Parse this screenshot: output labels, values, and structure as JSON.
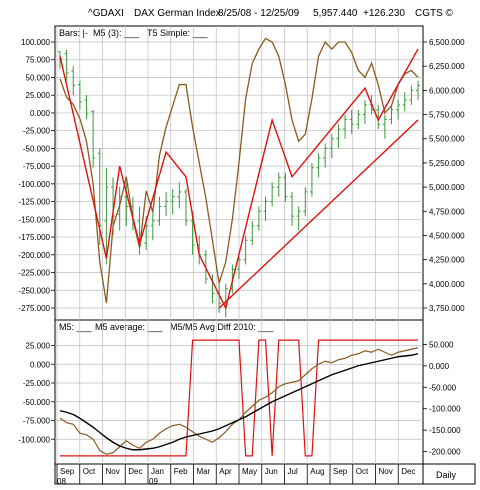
{
  "header": {
    "symbol": "^GDAXI",
    "name": "DAX German Index",
    "range": "8/25/08 - 12/25/09",
    "last": "5,957.440",
    "change": "+126.230",
    "copyright": "CGTS ©"
  },
  "colors": {
    "bars": "#3a9a3a",
    "oscillator": "#8b5a1e",
    "red": "#e01010",
    "black": "#000000",
    "grid": "#bdbdbd"
  },
  "chart_data": [
    {
      "type": "bar",
      "title": "Price panel",
      "legend": [
        "Bars: |-",
        "M5 (3): ___",
        "T5 Simple: ___"
      ],
      "right_axis": {
        "ylim": [
          3750,
          6500
        ],
        "ticks": [
          "6,500.000",
          "6,250.000",
          "6,000.000",
          "5,750.000",
          "5,500.000",
          "5,250.000",
          "5,000.000",
          "4,750.000",
          "4,500.000",
          "4,250.000",
          "4,000.000",
          "3,750.000"
        ]
      },
      "left_axis": {
        "ylim": [
          -275,
          100
        ],
        "ticks": [
          "100.000",
          "75.000",
          "50.000",
          "25.000",
          "0.000",
          "-25.000",
          "-50.000",
          "-75.000",
          "-100.000",
          "-125.000",
          "-150.000",
          "-175.000",
          "-200.000",
          "-225.000",
          "-250.000",
          "-275.000"
        ]
      },
      "ohlc_weeks": [
        [
          6400,
          6400,
          6220,
          6330
        ],
        [
          6380,
          6420,
          6100,
          6180
        ],
        [
          6200,
          6250,
          5950,
          6050
        ],
        [
          6060,
          6100,
          5800,
          5880
        ],
        [
          5900,
          5950,
          5700,
          5760
        ],
        [
          5780,
          5800,
          5200,
          5300
        ],
        [
          5350,
          5400,
          4400,
          4600
        ],
        [
          4650,
          5200,
          4200,
          5000
        ],
        [
          5000,
          5100,
          4500,
          4700
        ],
        [
          4720,
          5000,
          4550,
          4900
        ],
        [
          4900,
          5050,
          4600,
          4800
        ],
        [
          4800,
          4900,
          4550,
          4650
        ],
        [
          4650,
          4800,
          4300,
          4400
        ],
        [
          4420,
          4700,
          4350,
          4600
        ],
        [
          4600,
          4750,
          4450,
          4650
        ],
        [
          4650,
          4900,
          4600,
          4800
        ],
        [
          4800,
          4950,
          4700,
          4850
        ],
        [
          4850,
          4980,
          4720,
          4900
        ],
        [
          4900,
          5050,
          4780,
          4950
        ],
        [
          4950,
          4980,
          4600,
          4650
        ],
        [
          4650,
          4750,
          4300,
          4400
        ],
        [
          4400,
          4500,
          4200,
          4300
        ],
        [
          4300,
          4350,
          4000,
          4050
        ],
        [
          4050,
          4100,
          3800,
          3900
        ],
        [
          3900,
          4050,
          3700,
          3800
        ],
        [
          3800,
          4000,
          3650,
          3950
        ],
        [
          3950,
          4200,
          3900,
          4150
        ],
        [
          4150,
          4300,
          4050,
          4250
        ],
        [
          4250,
          4500,
          4200,
          4450
        ],
        [
          4450,
          4650,
          4400,
          4600
        ],
        [
          4600,
          4800,
          4550,
          4750
        ],
        [
          4750,
          4900,
          4650,
          4850
        ],
        [
          4850,
          5050,
          4800,
          5000
        ],
        [
          5000,
          5150,
          4900,
          5100
        ],
        [
          5100,
          5150,
          4850,
          4900
        ],
        [
          4900,
          4950,
          4600,
          4700
        ],
        [
          4700,
          4800,
          4550,
          4750
        ],
        [
          4750,
          5000,
          4700,
          4950
        ],
        [
          4950,
          5250,
          4900,
          5200
        ],
        [
          5200,
          5350,
          5100,
          5300
        ],
        [
          5300,
          5450,
          5200,
          5400
        ],
        [
          5400,
          5550,
          5300,
          5500
        ],
        [
          5500,
          5650,
          5400,
          5600
        ],
        [
          5600,
          5750,
          5500,
          5700
        ],
        [
          5700,
          5800,
          5550,
          5650
        ],
        [
          5650,
          5800,
          5600,
          5750
        ],
        [
          5750,
          5900,
          5650,
          5850
        ],
        [
          5850,
          5950,
          5750,
          5800
        ],
        [
          5800,
          5850,
          5600,
          5650
        ],
        [
          5650,
          5750,
          5500,
          5700
        ],
        [
          5700,
          5850,
          5650,
          5800
        ],
        [
          5800,
          5900,
          5700,
          5850
        ],
        [
          5850,
          5980,
          5780,
          5900
        ],
        [
          5900,
          6050,
          5850,
          6000
        ],
        [
          6000,
          6100,
          5900,
          6050
        ]
      ],
      "m5_3": [
        48,
        22,
        12,
        -8,
        -40,
        -100,
        -210,
        -268,
        -160,
        -130,
        -90,
        -150,
        -190,
        -110,
        -140,
        -60,
        -20,
        10,
        40,
        40,
        -20,
        -70,
        -120,
        -180,
        -240,
        -210,
        -150,
        -70,
        20,
        70,
        90,
        105,
        100,
        80,
        40,
        -10,
        -40,
        -30,
        20,
        80,
        100,
        90,
        100,
        100,
        85,
        60,
        50,
        70,
        40,
        0,
        10,
        40,
        55,
        60,
        50
      ],
      "t5_simple": [
        [
          0,
          80
        ],
        [
          7,
          -205
        ],
        [
          9,
          -75
        ],
        [
          12,
          -185
        ],
        [
          16,
          -55
        ],
        [
          19,
          -90
        ],
        [
          21,
          -200
        ],
        [
          25,
          -275
        ],
        [
          32,
          -10
        ],
        [
          35,
          -90
        ],
        [
          46,
          35
        ],
        [
          48,
          -10
        ],
        [
          54,
          90
        ]
      ],
      "trendline": [
        [
          24,
          -275
        ],
        [
          54,
          -10
        ]
      ]
    },
    {
      "type": "line",
      "title": "Oscillator panel",
      "legend": [
        "M5: ___",
        "M5 average: ___",
        "M5/M5 Avg Diff 2010: ___"
      ],
      "left_axis": {
        "ylim": [
          -125,
          35
        ],
        "ticks": [
          "25.000",
          "0.000",
          "-25.000",
          "-50.000",
          "-75.000",
          "-100.000"
        ]
      },
      "right_axis": {
        "ylim": [
          -215,
          65
        ],
        "ticks": [
          "50.000",
          "0.000",
          "-50.000",
          "-100.000",
          "-150.000",
          "-200.000"
        ]
      },
      "m5": [
        -72,
        -78,
        -80,
        -92,
        -94,
        -100,
        -115,
        -120,
        -118,
        -110,
        -102,
        -108,
        -112,
        -104,
        -100,
        -92,
        -86,
        -82,
        -80,
        -84,
        -90,
        -96,
        -100,
        -104,
        -98,
        -90,
        -80,
        -74,
        -64,
        -56,
        -48,
        -44,
        -38,
        -30,
        -26,
        -24,
        -22,
        -14,
        -6,
        0,
        4,
        2,
        6,
        8,
        12,
        14,
        18,
        16,
        20,
        16,
        12,
        16,
        18,
        20,
        22
      ],
      "m5_average": [
        -62,
        -64,
        -67,
        -72,
        -78,
        -84,
        -91,
        -98,
        -104,
        -109,
        -112,
        -114,
        -114,
        -113,
        -112,
        -110,
        -107,
        -104,
        -100,
        -97,
        -95,
        -93,
        -91,
        -89,
        -86,
        -82,
        -78,
        -74,
        -70,
        -65,
        -60,
        -55,
        -50,
        -46,
        -42,
        -38,
        -34,
        -30,
        -26,
        -22,
        -18,
        -14,
        -11,
        -8,
        -5,
        -2,
        0,
        2,
        4,
        6,
        8,
        10,
        11,
        12,
        14
      ],
      "diff_2010": [
        [
          0,
          -210
        ],
        [
          19,
          -210
        ],
        [
          20,
          60
        ],
        [
          27,
          60
        ],
        [
          28,
          -210
        ],
        [
          29,
          -210
        ],
        [
          30,
          60
        ],
        [
          31,
          60
        ],
        [
          32,
          -210
        ],
        [
          33,
          60
        ],
        [
          36,
          60
        ],
        [
          37,
          -210
        ],
        [
          38,
          -210
        ],
        [
          39,
          60
        ],
        [
          54,
          60
        ]
      ]
    }
  ],
  "x_axis": {
    "months": [
      "Sep",
      "Oct",
      "Nov",
      "Dec",
      "Jan",
      "Feb",
      "Mar",
      "Apr",
      "May",
      "Jun",
      "Jul",
      "Aug",
      "Sep",
      "Oct",
      "Nov",
      "Dec"
    ],
    "years": [
      "08",
      "09"
    ],
    "right_label": "Daily"
  }
}
